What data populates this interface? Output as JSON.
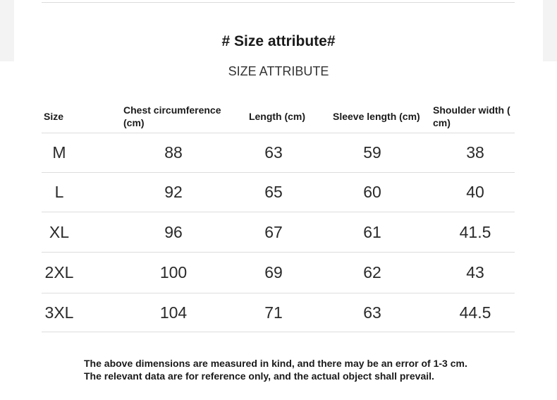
{
  "heading": "# Size attribute#",
  "subheading": "SIZE ATTRIBUTE",
  "table": {
    "headers": [
      "Size",
      "Chest circumference (cm)",
      "Length (cm)",
      "Sleeve length (cm)",
      "Shoulder width ( cm)"
    ],
    "rows": [
      [
        "M",
        "88",
        "63",
        "59",
        "38"
      ],
      [
        "L",
        "92",
        "65",
        "60",
        "40"
      ],
      [
        "XL",
        "96",
        "67",
        "61",
        "41.5"
      ],
      [
        "2XL",
        "100",
        "69",
        "62",
        "43"
      ],
      [
        "3XL",
        "104",
        "71",
        "63",
        "44.5"
      ]
    ]
  },
  "note": "The above dimensions are measured in kind, and there may be an error of 1-3 cm. The relevant data are for reference only, and the actual object shall prevail."
}
